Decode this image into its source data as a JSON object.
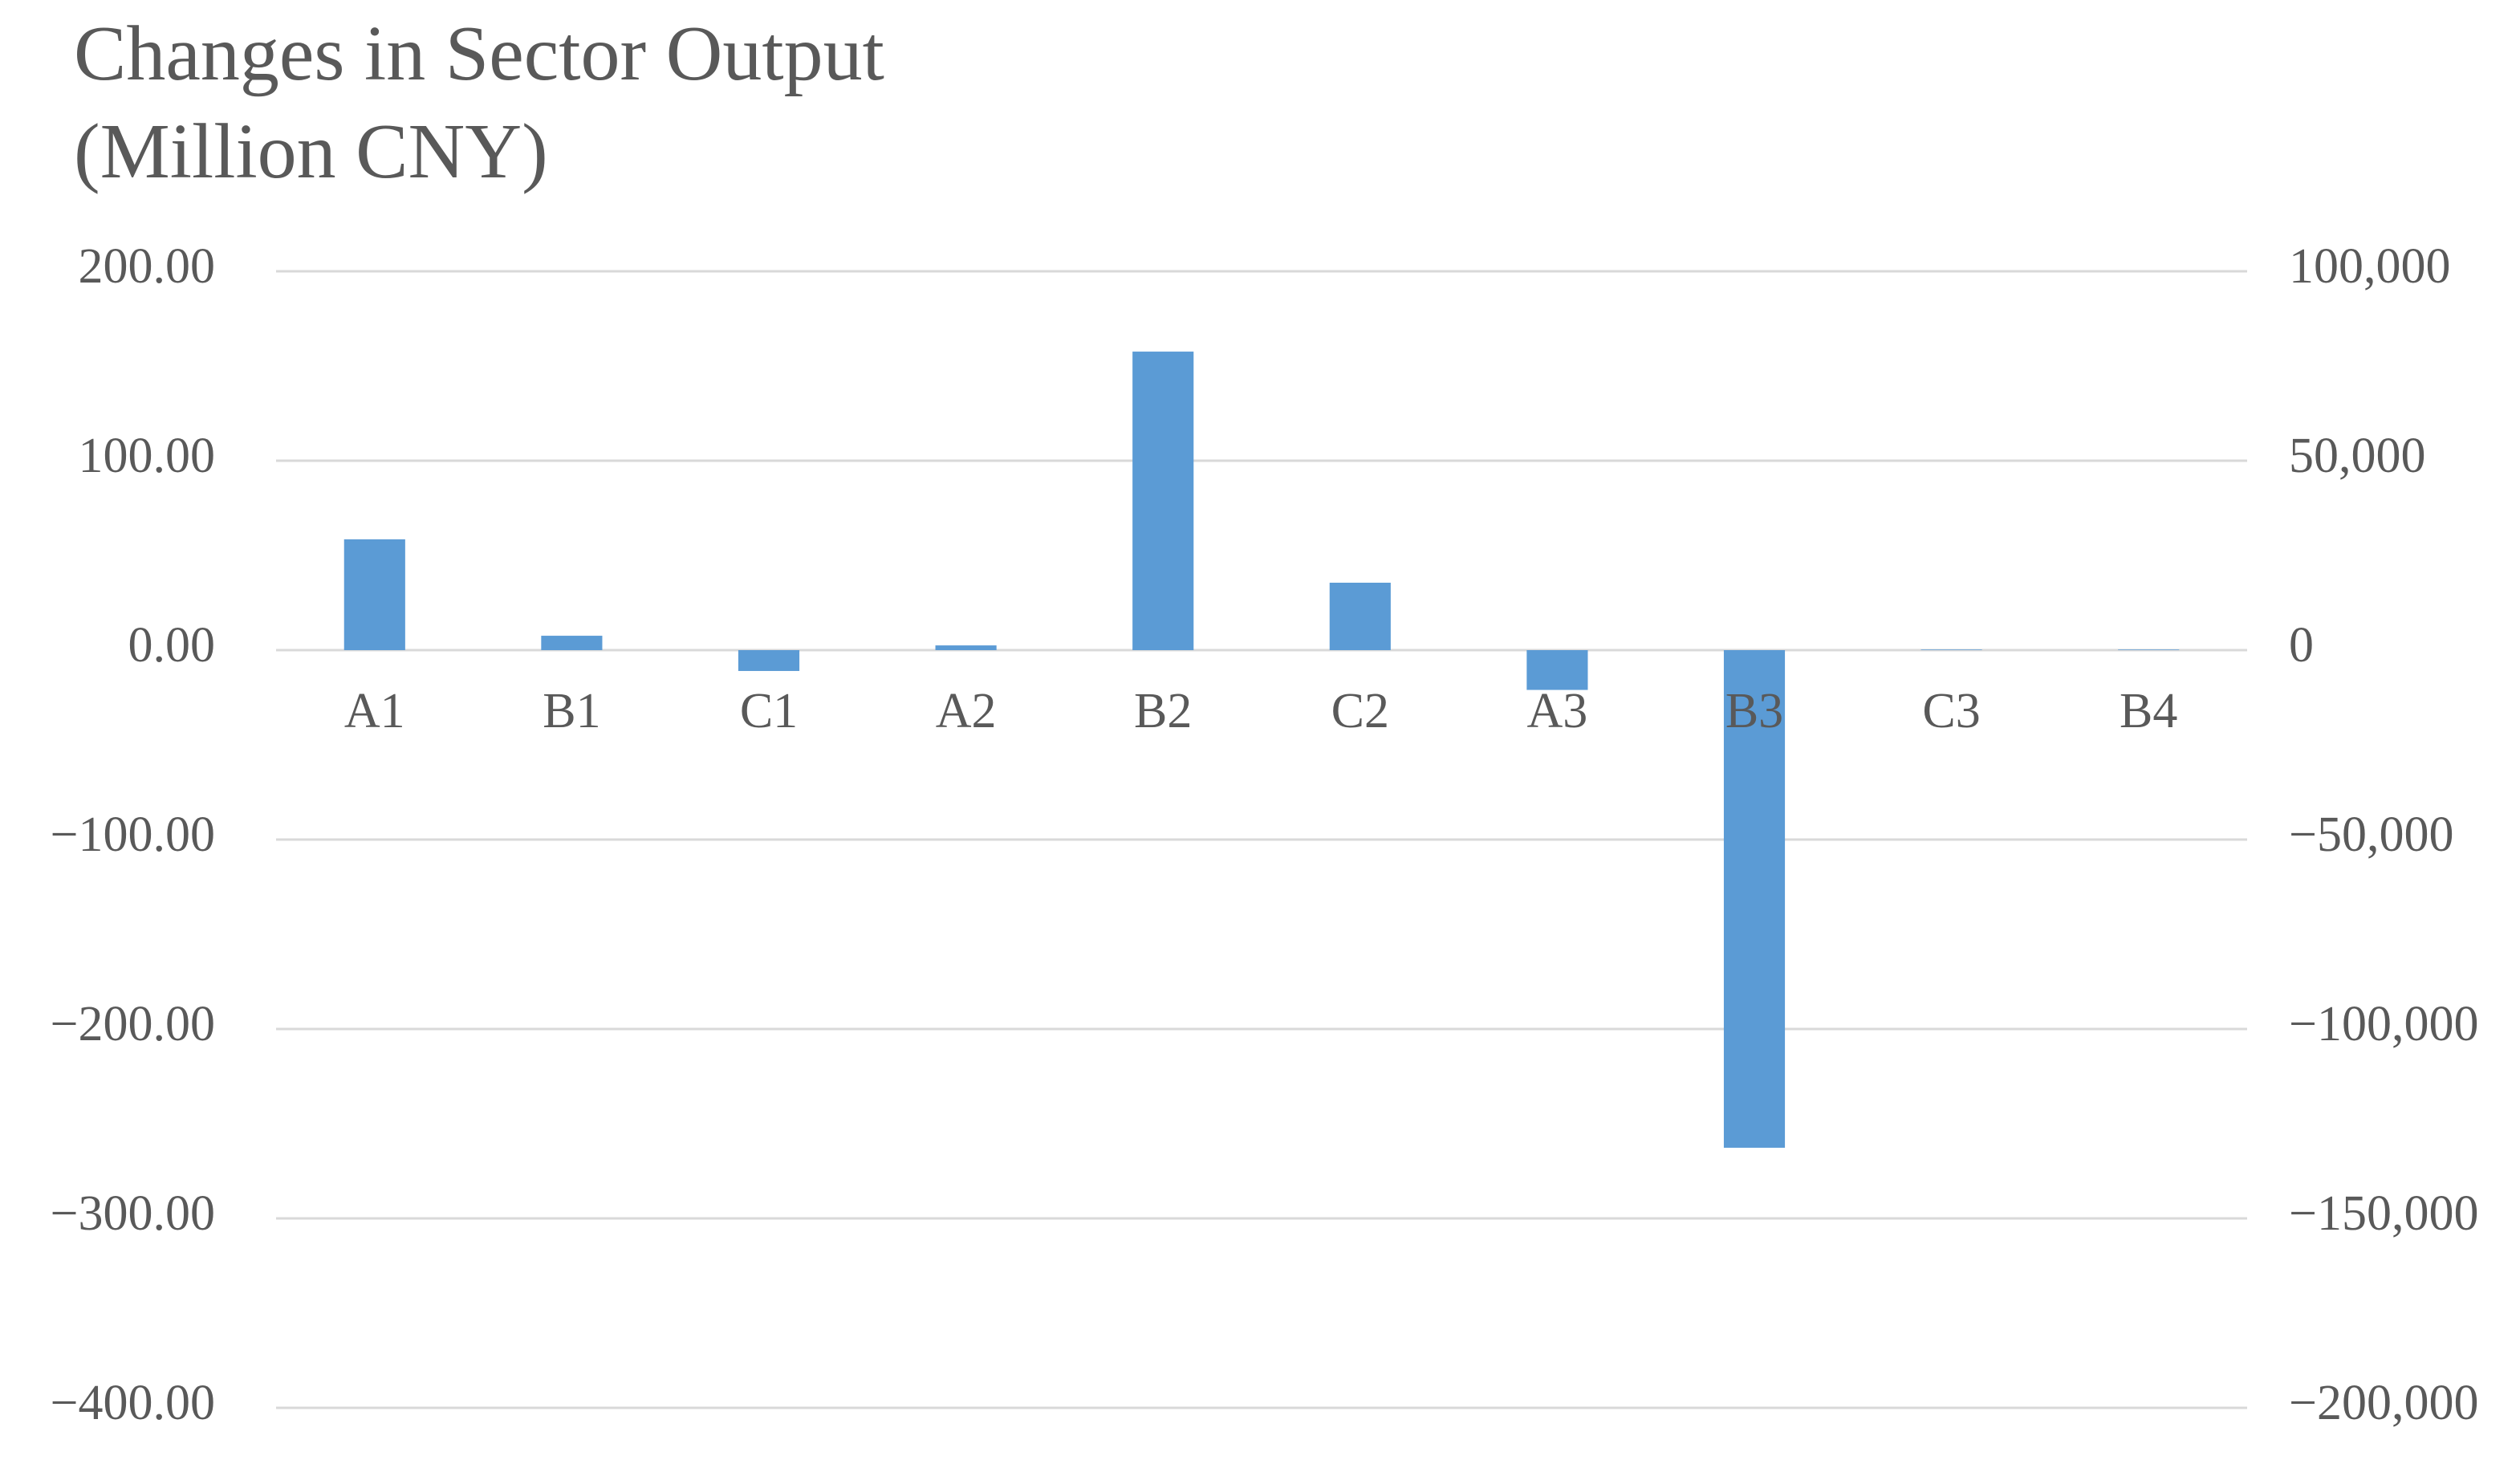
{
  "chart_data": {
    "type": "bar",
    "title": "Changes in Sector Output (Million CNY)",
    "categories": [
      "A1",
      "B1",
      "C1",
      "A2",
      "B2",
      "C2",
      "A3",
      "B3",
      "C3",
      "B4"
    ],
    "values": [
      58.5,
      7.6,
      -11,
      2.5,
      157.6,
      35.6,
      -21,
      -262.7,
      0.3,
      0.3
    ],
    "color": "#5b9bd5",
    "ylim": [
      -400,
      200
    ],
    "yticks": [
      {
        "value": -400,
        "label": "−400.00"
      },
      {
        "value": -300,
        "label": "−300.00"
      },
      {
        "value": -200,
        "label": "−200.00"
      },
      {
        "value": -100,
        "label": "−100.00"
      },
      {
        "value": 0,
        "label": "0.00"
      },
      {
        "value": 100,
        "label": "100.00"
      },
      {
        "value": 200,
        "label": "200.00"
      }
    ],
    "y2lim": [
      -200000,
      100000
    ],
    "y2ticks": [
      {
        "value": -200000,
        "label": "−200,000"
      },
      {
        "value": -150000,
        "label": "−150,000"
      },
      {
        "value": -100000,
        "label": "−100,000"
      },
      {
        "value": -50000,
        "label": "−50,000"
      },
      0,
      {
        "value": 50000,
        "label": "50,000"
      },
      {
        "value": 100000,
        "label": "100,000"
      }
    ],
    "grid": true
  }
}
